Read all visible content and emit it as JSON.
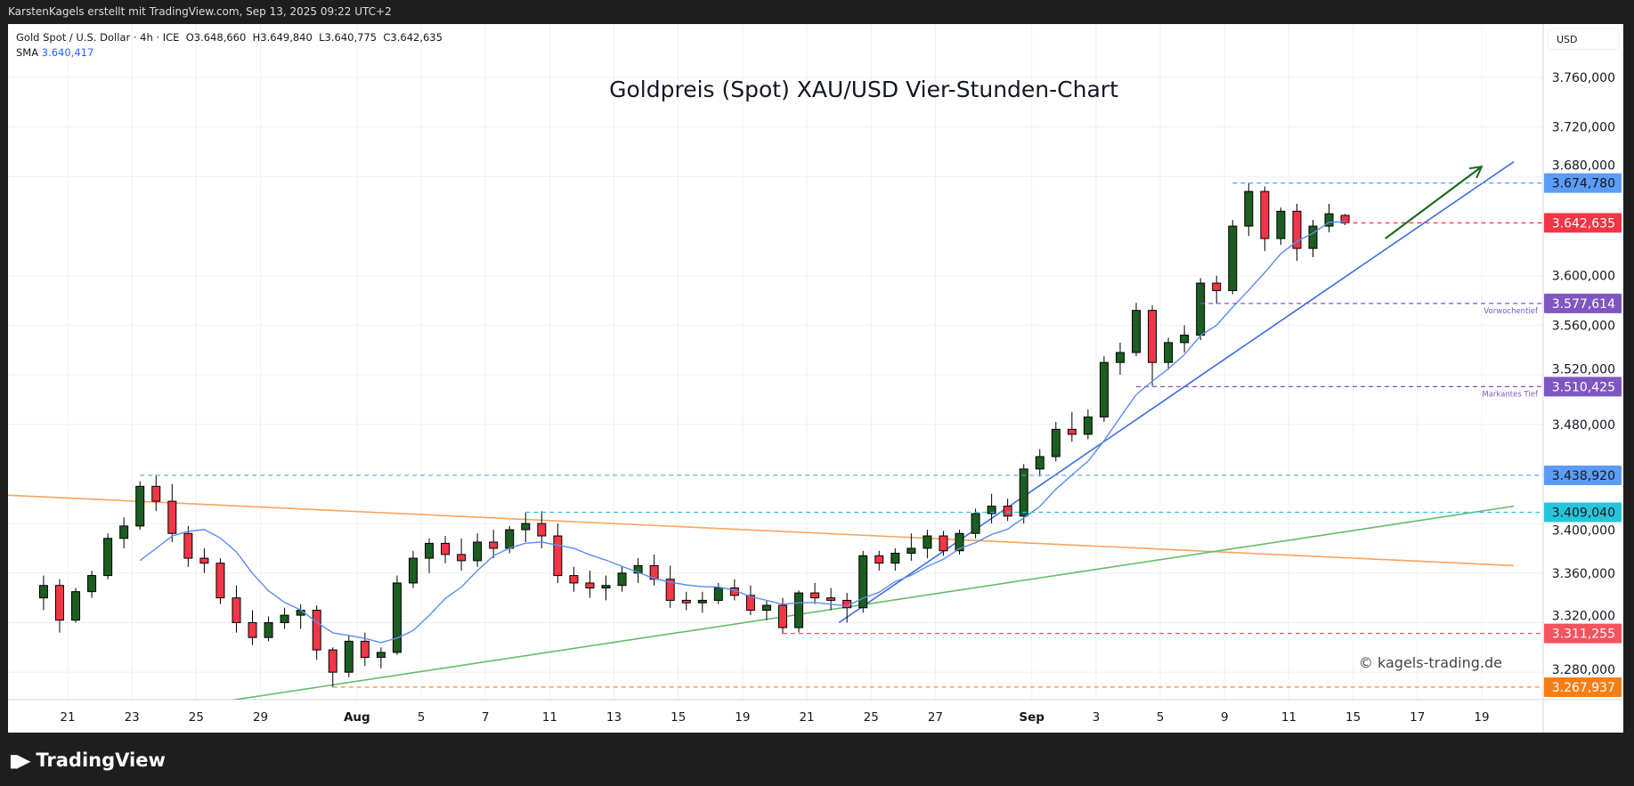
{
  "header": {
    "credit": "KarstenKagels erstellt mit TradingView.com, Sep 13, 2025 09:22 UTC+2"
  },
  "legend": {
    "symbol": "Gold Spot / U.S. Dollar · 4h · ICE",
    "open": "O3.648,660",
    "high": "H3.649,840",
    "low": "L3.640,775",
    "close": "C3.642,635",
    "sma_label": "SMA",
    "sma_value": "3.640,417"
  },
  "axis_currency": "USD",
  "watermark": "© kagels-trading.de",
  "brand": {
    "name": "TradingView",
    "icon": "tradingview-logo-icon"
  },
  "colors": {
    "up": "#1b5e20",
    "down": "#f23645",
    "sma": "#5b8def",
    "grid": "#eef0f3"
  },
  "chart_data": {
    "type": "candlestick",
    "title": "Goldpreis (Spot) XAU/USD Vier-Stunden-Chart",
    "symbol": "XAU/USD",
    "ylim": [
      3250,
      3790
    ],
    "grid": true,
    "y_ticks": [
      {
        "value": 3760,
        "label": "3.760,000"
      },
      {
        "value": 3720,
        "label": "3.720,000"
      },
      {
        "value": 3680,
        "label": "3.680,000"
      },
      {
        "value": 3600,
        "label": "3.600,000"
      },
      {
        "value": 3560,
        "label": "3.560,000"
      },
      {
        "value": 3520,
        "label": "3.520,000"
      },
      {
        "value": 3480,
        "label": "3.480,000"
      },
      {
        "value": 3400,
        "label": "3.400,000"
      },
      {
        "value": 3360,
        "label": "3.360,000"
      },
      {
        "value": 3320,
        "label": "3.320,000"
      },
      {
        "value": 3280,
        "label": "3.280,000"
      }
    ],
    "x_ticks": [
      {
        "date": "2025-07-21",
        "label": "21"
      },
      {
        "date": "2025-07-23",
        "label": "23"
      },
      {
        "date": "2025-07-25",
        "label": "25"
      },
      {
        "date": "2025-07-29",
        "label": "29"
      },
      {
        "date": "2025-08-01",
        "label": "Aug",
        "bold": true
      },
      {
        "date": "2025-08-05",
        "label": "5"
      },
      {
        "date": "2025-08-07",
        "label": "7"
      },
      {
        "date": "2025-08-11",
        "label": "11"
      },
      {
        "date": "2025-08-13",
        "label": "13"
      },
      {
        "date": "2025-08-15",
        "label": "15"
      },
      {
        "date": "2025-08-19",
        "label": "19"
      },
      {
        "date": "2025-08-21",
        "label": "21"
      },
      {
        "date": "2025-08-25",
        "label": "25"
      },
      {
        "date": "2025-08-27",
        "label": "27"
      },
      {
        "date": "2025-09-01",
        "label": "Sep",
        "bold": true
      },
      {
        "date": "2025-09-03",
        "label": "3"
      },
      {
        "date": "2025-09-05",
        "label": "5"
      },
      {
        "date": "2025-09-09",
        "label": "9"
      },
      {
        "date": "2025-09-11",
        "label": "11"
      },
      {
        "date": "2025-09-15",
        "label": "15"
      },
      {
        "date": "2025-09-17",
        "label": "17"
      },
      {
        "date": "2025-09-19",
        "label": "19"
      }
    ],
    "first_date": "2025-07-18",
    "candles_per_day": 2,
    "candles": [
      [
        3340,
        3358,
        3330,
        3350
      ],
      [
        3350,
        3355,
        3312,
        3322
      ],
      [
        3322,
        3348,
        3320,
        3345
      ],
      [
        3345,
        3362,
        3340,
        3358
      ],
      [
        3358,
        3392,
        3355,
        3388
      ],
      [
        3388,
        3405,
        3380,
        3398
      ],
      [
        3398,
        3434,
        3395,
        3430
      ],
      [
        3430,
        3439,
        3410,
        3418
      ],
      [
        3418,
        3432,
        3385,
        3392
      ],
      [
        3392,
        3398,
        3365,
        3372
      ],
      [
        3372,
        3380,
        3360,
        3368
      ],
      [
        3368,
        3372,
        3335,
        3340
      ],
      [
        3340,
        3350,
        3312,
        3320
      ],
      [
        3320,
        3330,
        3302,
        3308
      ],
      [
        3308,
        3325,
        3305,
        3320
      ],
      [
        3320,
        3332,
        3315,
        3326
      ],
      [
        3326,
        3335,
        3315,
        3330
      ],
      [
        3330,
        3334,
        3290,
        3298
      ],
      [
        3298,
        3300,
        3268,
        3280
      ],
      [
        3280,
        3310,
        3276,
        3305
      ],
      [
        3305,
        3312,
        3285,
        3292
      ],
      [
        3292,
        3300,
        3283,
        3296
      ],
      [
        3296,
        3358,
        3294,
        3352
      ],
      [
        3352,
        3378,
        3348,
        3372
      ],
      [
        3372,
        3388,
        3360,
        3384
      ],
      [
        3384,
        3390,
        3368,
        3375
      ],
      [
        3375,
        3388,
        3362,
        3370
      ],
      [
        3370,
        3392,
        3365,
        3385
      ],
      [
        3385,
        3395,
        3372,
        3380
      ],
      [
        3380,
        3398,
        3376,
        3395
      ],
      [
        3395,
        3409,
        3385,
        3400
      ],
      [
        3400,
        3410,
        3380,
        3390
      ],
      [
        3390,
        3400,
        3352,
        3358
      ],
      [
        3358,
        3365,
        3345,
        3352
      ],
      [
        3352,
        3362,
        3340,
        3348
      ],
      [
        3348,
        3358,
        3338,
        3350
      ],
      [
        3350,
        3365,
        3345,
        3360
      ],
      [
        3360,
        3372,
        3352,
        3366
      ],
      [
        3366,
        3375,
        3350,
        3355
      ],
      [
        3355,
        3366,
        3332,
        3338
      ],
      [
        3338,
        3345,
        3330,
        3336
      ],
      [
        3336,
        3345,
        3328,
        3338
      ],
      [
        3338,
        3352,
        3335,
        3348
      ],
      [
        3348,
        3355,
        3338,
        3342
      ],
      [
        3342,
        3350,
        3326,
        3330
      ],
      [
        3330,
        3338,
        3322,
        3334
      ],
      [
        3334,
        3340,
        3311,
        3316
      ],
      [
        3316,
        3346,
        3312,
        3344
      ],
      [
        3344,
        3352,
        3335,
        3340
      ],
      [
        3340,
        3348,
        3330,
        3338
      ],
      [
        3338,
        3344,
        3320,
        3332
      ],
      [
        3332,
        3378,
        3328,
        3374
      ],
      [
        3374,
        3378,
        3362,
        3368
      ],
      [
        3368,
        3380,
        3362,
        3376
      ],
      [
        3376,
        3392,
        3370,
        3380
      ],
      [
        3380,
        3395,
        3372,
        3390
      ],
      [
        3390,
        3394,
        3374,
        3378
      ],
      [
        3378,
        3395,
        3375,
        3392
      ],
      [
        3392,
        3412,
        3388,
        3408
      ],
      [
        3408,
        3424,
        3400,
        3414
      ],
      [
        3414,
        3420,
        3402,
        3406
      ],
      [
        3406,
        3448,
        3400,
        3444
      ],
      [
        3444,
        3460,
        3438,
        3454
      ],
      [
        3454,
        3482,
        3450,
        3476
      ],
      [
        3476,
        3490,
        3466,
        3472
      ],
      [
        3472,
        3492,
        3468,
        3486
      ],
      [
        3486,
        3535,
        3482,
        3530
      ],
      [
        3530,
        3546,
        3520,
        3538
      ],
      [
        3538,
        3578,
        3535,
        3572
      ],
      [
        3572,
        3576,
        3511,
        3530
      ],
      [
        3530,
        3550,
        3524,
        3546
      ],
      [
        3546,
        3560,
        3538,
        3552
      ],
      [
        3552,
        3598,
        3548,
        3594
      ],
      [
        3594,
        3600,
        3577.614,
        3588
      ],
      [
        3588,
        3645,
        3585,
        3640
      ],
      [
        3640,
        3674.78,
        3632,
        3668
      ],
      [
        3668,
        3672,
        3620,
        3630
      ],
      [
        3630,
        3655,
        3625,
        3652
      ],
      [
        3652,
        3658,
        3612,
        3622
      ],
      [
        3622,
        3645,
        3615,
        3640
      ],
      [
        3640,
        3658,
        3635,
        3650
      ],
      [
        3648.66,
        3649.84,
        3640.775,
        3642.635
      ]
    ],
    "sma": {
      "label": "SMA",
      "last": 3640.417
    },
    "levels": [
      {
        "price": 3674.78,
        "label": "3.674,780",
        "from": "2025-09-09",
        "color": "#5b9cf6",
        "text_color": "#131722"
      },
      {
        "price": 3642.635,
        "label": "3.642,635",
        "from": null,
        "color": "#f23645",
        "text_color": "#ffffff"
      },
      {
        "price": 3577.614,
        "label": "3.577,614",
        "from": "2025-09-08",
        "color": "#7e57c2",
        "text_color": "#ffffff",
        "note": "Vorwochentief"
      },
      {
        "price": 3510.425,
        "label": "3.510,425",
        "from": "2025-09-04",
        "color": "#7e57c2",
        "text_color": "#ffffff",
        "note": "Markantes Tief"
      },
      {
        "price": 3438.92,
        "label": "3.438,920",
        "from": "2025-07-23",
        "color": "#5b9cf6",
        "text_color": "#131722"
      },
      {
        "price": 3409.04,
        "label": "3.409,040",
        "from": "2025-08-08",
        "color": "#26c6da",
        "text_color": "#131722"
      },
      {
        "price": 3311.255,
        "label": "3.311,255",
        "from": "2025-08-20",
        "color": "#f7525f",
        "text_color": "#ffffff"
      },
      {
        "price": 3267.937,
        "label": "3.267,937",
        "from": "2025-07-31",
        "color": "#f57f17",
        "text_color": "#ffffff"
      }
    ],
    "trendlines": [
      {
        "name": "resistance",
        "color": "#f7a35c",
        "points": [
          [
            "2025-07-17",
            3423
          ],
          [
            "2025-09-22",
            3366
          ]
        ]
      },
      {
        "name": "support-long",
        "color": "#66bb6a",
        "points": [
          [
            "2025-07-28",
            3257
          ],
          [
            "2025-09-22",
            3414
          ]
        ]
      },
      {
        "name": "support-short",
        "color": "#3d6ee0",
        "points": [
          [
            "2025-08-22",
            3320
          ],
          [
            "2025-09-22",
            3692
          ]
        ]
      }
    ],
    "arrow": {
      "color": "#1b6e20",
      "points": [
        [
          "2025-09-16",
          3630
        ],
        [
          "2025-09-19",
          3688
        ]
      ]
    }
  }
}
